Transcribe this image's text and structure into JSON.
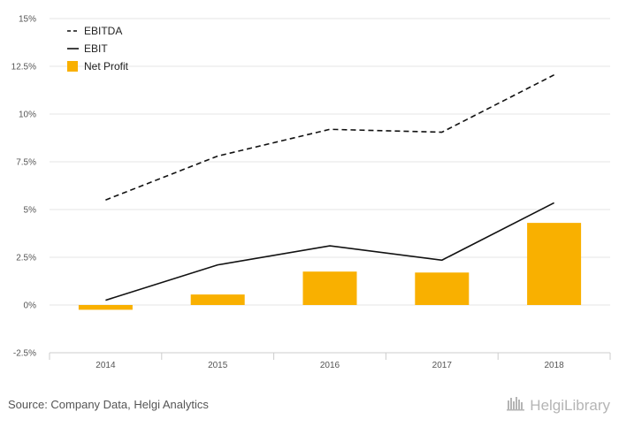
{
  "chart_data": {
    "type": "bar",
    "categories": [
      "2014",
      "2015",
      "2016",
      "2017",
      "2018"
    ],
    "series": [
      {
        "name": "EBITDA",
        "type": "line",
        "style": "dashed",
        "color": "#111111",
        "values": [
          5.5,
          7.8,
          9.2,
          9.05,
          12.05
        ]
      },
      {
        "name": "EBIT",
        "type": "line",
        "style": "solid",
        "color": "#111111",
        "values": [
          0.25,
          2.1,
          3.1,
          2.35,
          5.35
        ]
      },
      {
        "name": "Net Profit",
        "type": "bar",
        "color": "#f9b000",
        "values": [
          -0.25,
          0.55,
          1.75,
          1.7,
          4.3
        ]
      }
    ],
    "ylim": [
      -2.5,
      15
    ],
    "yticks": [
      15,
      12.5,
      10,
      7.5,
      5,
      2.5,
      0,
      -2.5
    ],
    "ytick_labels": [
      "15%",
      "12.5%",
      "10%",
      "7.5%",
      "5%",
      "2.5%",
      "0%",
      "-2.5%"
    ],
    "grid": true,
    "legend_position": "top-left"
  },
  "footer": {
    "source": "Source: Company Data, Helgi Analytics",
    "brand": "HelgiLibrary"
  }
}
